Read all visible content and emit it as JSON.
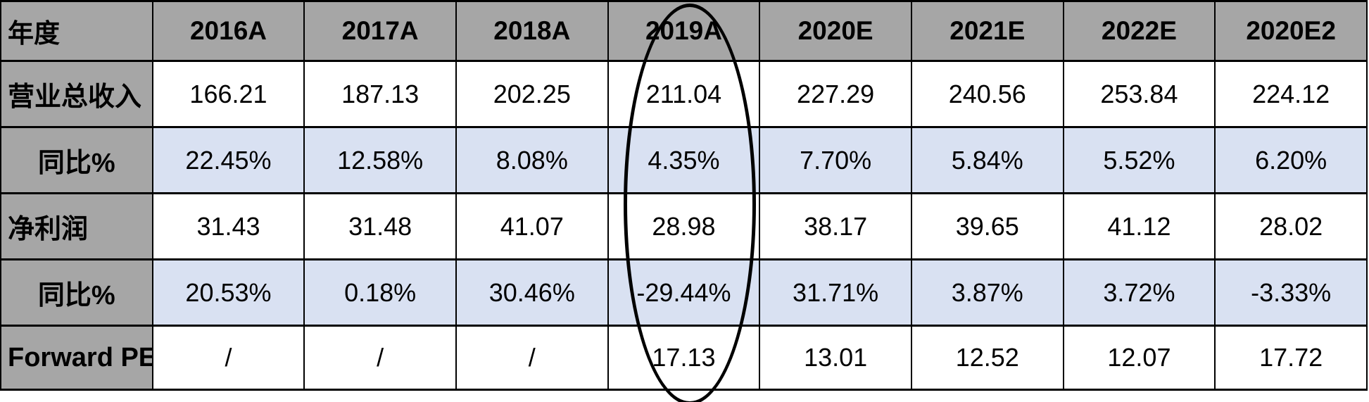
{
  "chart_data": {
    "type": "table",
    "corner_label": "年度",
    "columns": [
      "2016A",
      "2017A",
      "2018A",
      "2019A",
      "2020E",
      "2021E",
      "2022E",
      "2020E2"
    ],
    "rows": [
      {
        "label": "营业总收入",
        "label_align": "left",
        "banded": false,
        "values": [
          "166.21",
          "187.13",
          "202.25",
          "211.04",
          "227.29",
          "240.56",
          "253.84",
          "224.12"
        ]
      },
      {
        "label": "同比%",
        "label_align": "center",
        "banded": true,
        "values": [
          "22.45%",
          "12.58%",
          "8.08%",
          "4.35%",
          "7.70%",
          "5.84%",
          "5.52%",
          "6.20%"
        ]
      },
      {
        "label": "净利润",
        "label_align": "left",
        "banded": false,
        "values": [
          "31.43",
          "31.48",
          "41.07",
          "28.98",
          "38.17",
          "39.65",
          "41.12",
          "28.02"
        ]
      },
      {
        "label": "同比%",
        "label_align": "center",
        "banded": true,
        "values": [
          "20.53%",
          "0.18%",
          "30.46%",
          "-29.44%",
          "31.71%",
          "3.87%",
          "3.72%",
          "-3.33%"
        ]
      },
      {
        "label": "Forward PE",
        "label_align": "left",
        "banded": false,
        "values": [
          "/",
          "/",
          "/",
          "17.13",
          "13.01",
          "12.52",
          "12.07",
          "17.72"
        ]
      }
    ],
    "annotation": {
      "shape": "ellipse",
      "target_column": "2019A",
      "description": "hand-drawn black ellipse circling the 2019A column from header to bottom row"
    },
    "layout": {
      "grid": "on",
      "banding": "alternate rows light blue"
    }
  },
  "colors": {
    "header_bg": "#a6a6a6",
    "label_col_bg": "#a6a6a6",
    "band_bg": "#d9e1f2",
    "cell_bg": "#ffffff",
    "border": "#000000",
    "annotation_stroke": "#000000",
    "text": "#000000"
  }
}
